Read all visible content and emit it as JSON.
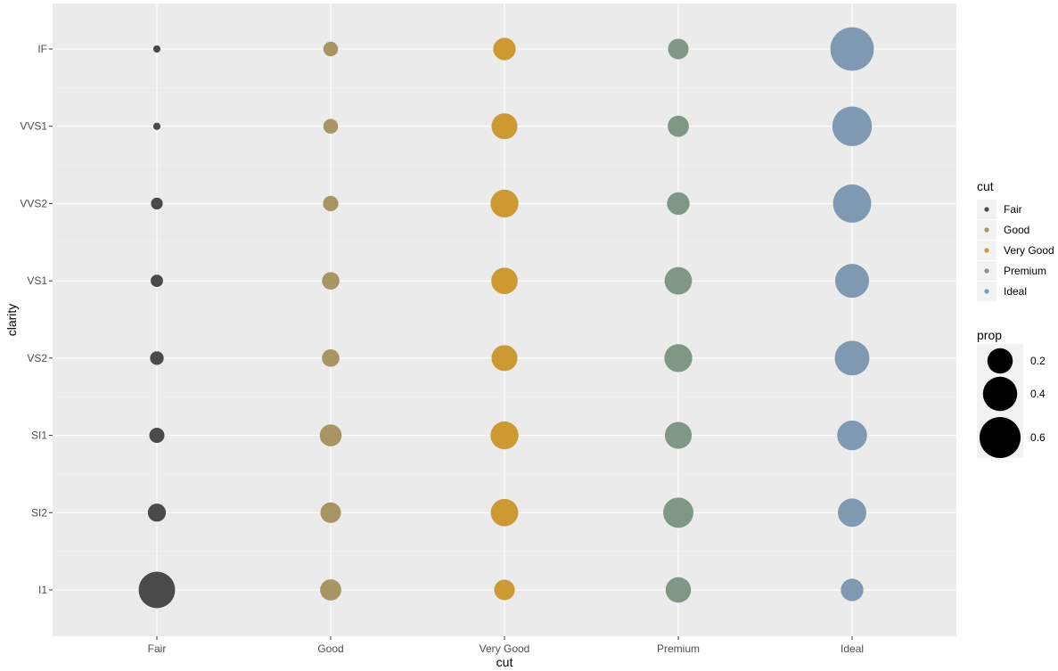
{
  "chart_data": {
    "type": "scatter",
    "title": "",
    "xlabel": "cut",
    "ylabel": "clarity",
    "x_categories": [
      "Fair",
      "Good",
      "Very Good",
      "Premium",
      "Ideal"
    ],
    "y_categories": [
      "I1",
      "SI2",
      "SI1",
      "VS2",
      "VS1",
      "VVS2",
      "VVS1",
      "IF"
    ],
    "grid": true,
    "size_legend": {
      "title": "prop",
      "breaks": [
        0.2,
        0.4,
        0.6
      ],
      "labels": [
        "0.2",
        "0.4",
        "0.6"
      ]
    },
    "color_legend": {
      "title": "cut",
      "entries": [
        {
          "label": "Fair",
          "color": "#4a4a4a"
        },
        {
          "label": "Good",
          "color": "#a89563"
        },
        {
          "label": "Very Good",
          "color": "#cc9933"
        },
        {
          "label": "Premium",
          "color": "#7f9886"
        },
        {
          "label": "Ideal",
          "color": "#7f99b3"
        }
      ]
    },
    "legend_position": "right",
    "series": [
      {
        "name": "Fair",
        "color": "#4a4a4a",
        "points": [
          {
            "clarity": "I1",
            "prop": 0.46
          },
          {
            "clarity": "SI2",
            "prop": 0.087
          },
          {
            "clarity": "SI1",
            "prop": 0.055
          },
          {
            "clarity": "VS2",
            "prop": 0.041
          },
          {
            "clarity": "VS1",
            "prop": 0.031
          },
          {
            "clarity": "VVS2",
            "prop": 0.027
          },
          {
            "clarity": "VVS1",
            "prop": 0.005
          },
          {
            "clarity": "IF",
            "prop": 0.005
          }
        ]
      },
      {
        "name": "Good",
        "color": "#a89563",
        "points": [
          {
            "clarity": "I1",
            "prop": 0.13
          },
          {
            "clarity": "SI2",
            "prop": 0.12
          },
          {
            "clarity": "SI1",
            "prop": 0.14
          },
          {
            "clarity": "VS2",
            "prop": 0.08
          },
          {
            "clarity": "VS1",
            "prop": 0.08
          },
          {
            "clarity": "VVS2",
            "prop": 0.057
          },
          {
            "clarity": "VVS1",
            "prop": 0.051
          },
          {
            "clarity": "IF",
            "prop": 0.05
          }
        ]
      },
      {
        "name": "Very Good",
        "color": "#cc9933",
        "points": [
          {
            "clarity": "I1",
            "prop": 0.12
          },
          {
            "clarity": "SI2",
            "prop": 0.24
          },
          {
            "clarity": "SI1",
            "prop": 0.25
          },
          {
            "clarity": "VS2",
            "prop": 0.21
          },
          {
            "clarity": "VS1",
            "prop": 0.22
          },
          {
            "clarity": "VVS2",
            "prop": 0.25
          },
          {
            "clarity": "VVS1",
            "prop": 0.21
          },
          {
            "clarity": "IF",
            "prop": 0.15
          }
        ]
      },
      {
        "name": "Premium",
        "color": "#7f9886",
        "points": [
          {
            "clarity": "I1",
            "prop": 0.2
          },
          {
            "clarity": "SI2",
            "prop": 0.3
          },
          {
            "clarity": "SI1",
            "prop": 0.23
          },
          {
            "clarity": "VS2",
            "prop": 0.25
          },
          {
            "clarity": "VS1",
            "prop": 0.24
          },
          {
            "clarity": "VVS2",
            "prop": 0.15
          },
          {
            "clarity": "VVS1",
            "prop": 0.13
          },
          {
            "clarity": "IF",
            "prop": 0.12
          }
        ]
      },
      {
        "name": "Ideal",
        "color": "#7f99b3",
        "points": [
          {
            "clarity": "I1",
            "prop": 0.15
          },
          {
            "clarity": "SI2",
            "prop": 0.26
          },
          {
            "clarity": "SI1",
            "prop": 0.29
          },
          {
            "clarity": "VS2",
            "prop": 0.41
          },
          {
            "clarity": "VS1",
            "prop": 0.39
          },
          {
            "clarity": "VVS2",
            "prop": 0.51
          },
          {
            "clarity": "VVS1",
            "prop": 0.55
          },
          {
            "clarity": "IF",
            "prop": 0.68
          }
        ]
      }
    ]
  }
}
